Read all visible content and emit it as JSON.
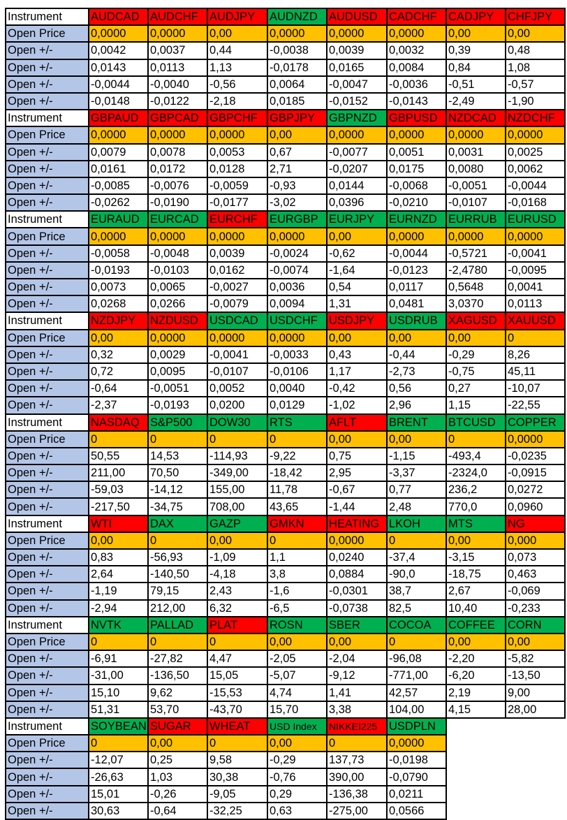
{
  "labels": {
    "instrument": "Instrument",
    "open_price": "Open Price",
    "delta": "Open +/-"
  },
  "colors": {
    "r": "#ff0000",
    "g": "#00b050",
    "open": "#ffc000",
    "label": "#b4c6e7"
  },
  "blocks": [
    {
      "instruments": [
        [
          "AUDCAD",
          "r"
        ],
        [
          "AUDCHF",
          "r"
        ],
        [
          "AUDJPY",
          "r"
        ],
        [
          "AUDNZD",
          "g"
        ],
        [
          "AUDUSD",
          "r"
        ],
        [
          "CADCHF",
          "r"
        ],
        [
          "CADJPY",
          "r"
        ],
        [
          "CHFJPY",
          "r"
        ]
      ],
      "open": [
        "0,0000",
        "0,0000",
        "0,00",
        "0,0000",
        "0,0000",
        "0,0000",
        "0,00",
        "0,00"
      ],
      "rows": [
        [
          "0,0042",
          "0,0037",
          "0,44",
          "-0,0038",
          "0,0039",
          "0,0032",
          "0,39",
          "0,48"
        ],
        [
          "0,0143",
          "0,0113",
          "1,13",
          "-0,0178",
          "0,0165",
          "0,0084",
          "0,84",
          "1,08"
        ],
        [
          "-0,0044",
          "-0,0040",
          "-0,56",
          "0,0064",
          "-0,0047",
          "-0,0036",
          "-0,51",
          "-0,57"
        ],
        [
          "-0,0148",
          "-0,0122",
          "-2,18",
          "0,0185",
          "-0,0152",
          "-0,0143",
          "-2,49",
          "-1,90"
        ]
      ]
    },
    {
      "instruments": [
        [
          "GBPAUD",
          "r"
        ],
        [
          "GBPCAD",
          "r"
        ],
        [
          "GBPCHF",
          "r"
        ],
        [
          "GBPJPY",
          "r"
        ],
        [
          "GBPNZD",
          "g"
        ],
        [
          "GBPUSD",
          "r"
        ],
        [
          "NZDCAD",
          "r"
        ],
        [
          "NZDCHF",
          "r"
        ]
      ],
      "open": [
        "0,0000",
        "0,0000",
        "0,0000",
        "0,00",
        "0,0000",
        "0,0000",
        "0,0000",
        "0,0000"
      ],
      "rows": [
        [
          "0,0079",
          "0,0078",
          "0,0053",
          "0,67",
          "-0,0077",
          "0,0051",
          "0,0031",
          "0,0025"
        ],
        [
          "0,0161",
          "0,0172",
          "0,0128",
          "2,71",
          "-0,0207",
          "0,0175",
          "0,0080",
          "0,0062"
        ],
        [
          "-0,0085",
          "-0,0076",
          "-0,0059",
          "-0,93",
          "0,0144",
          "-0,0068",
          "-0,0051",
          "-0,0044"
        ],
        [
          "-0,0262",
          "-0,0190",
          "-0,0177",
          "-3,02",
          "0,0396",
          "-0,0210",
          "-0,0107",
          "-0,0168"
        ]
      ]
    },
    {
      "instruments": [
        [
          "EURAUD",
          "g"
        ],
        [
          "EURCAD",
          "g"
        ],
        [
          "EURCHF",
          "r"
        ],
        [
          "EURGBP",
          "g"
        ],
        [
          "EURJPY",
          "g"
        ],
        [
          "EURNZD",
          "g"
        ],
        [
          "EURRUB",
          "g"
        ],
        [
          "EURUSD",
          "g"
        ]
      ],
      "open": [
        "0,0000",
        "0,0000",
        "0,0000",
        "0,0000",
        "0,00",
        "0,0000",
        "0,0000",
        "0,0000"
      ],
      "rows": [
        [
          "-0,0058",
          "-0,0048",
          "0,0039",
          "-0,0024",
          "-0,62",
          "-0,0044",
          "-0,5721",
          "-0,0041"
        ],
        [
          "-0,0193",
          "-0,0103",
          "0,0162",
          "-0,0074",
          "-1,64",
          "-0,0123",
          "-2,4780",
          "-0,0095"
        ],
        [
          "0,0073",
          "0,0065",
          "-0,0027",
          "0,0036",
          "0,54",
          "0,0117",
          "0,5648",
          "0,0041"
        ],
        [
          "0,0268",
          "0,0266",
          "-0,0079",
          "0,0094",
          "1,31",
          "0,0481",
          "3,0370",
          "0,0113"
        ]
      ]
    },
    {
      "instruments": [
        [
          "NZDJPY",
          "r"
        ],
        [
          "NZDUSD",
          "r"
        ],
        [
          "USDCAD",
          "g"
        ],
        [
          "USDCHF",
          "g"
        ],
        [
          "USDJPY",
          "r"
        ],
        [
          "USDRUB",
          "g"
        ],
        [
          "XAGUSD",
          "r"
        ],
        [
          "XAUUSD",
          "r"
        ]
      ],
      "open": [
        "0,00",
        "0,0000",
        "0,0000",
        "0,0000",
        "0,00",
        "0,00",
        "0,00",
        "0"
      ],
      "rows": [
        [
          "0,32",
          "0,0029",
          "-0,0041",
          "-0,0033",
          "0,43",
          "-0,44",
          "-0,29",
          "8,26"
        ],
        [
          "0,72",
          "0,0095",
          "-0,0107",
          "-0,0106",
          "1,17",
          "-2,73",
          "-0,75",
          "45,11"
        ],
        [
          "-0,64",
          "-0,0051",
          "0,0052",
          "0,0040",
          "-0,42",
          "0,56",
          "0,27",
          "-10,07"
        ],
        [
          "-2,37",
          "-0,0193",
          "0,0200",
          "0,0129",
          "-1,02",
          "2,96",
          "1,15",
          "-22,55"
        ]
      ]
    },
    {
      "instruments": [
        [
          "NASDAQ",
          "r"
        ],
        [
          "S&P500",
          "g"
        ],
        [
          "DOW30",
          "g"
        ],
        [
          "RTS",
          "g"
        ],
        [
          "AFLT",
          "r"
        ],
        [
          "BRENT",
          "g"
        ],
        [
          "BTCUSD",
          "g"
        ],
        [
          "COPPER",
          "g"
        ]
      ],
      "open": [
        "0",
        "0",
        "0",
        "0",
        "0,00",
        "0,00",
        "0",
        "0,0000"
      ],
      "rows": [
        [
          "50,55",
          "14,53",
          "-114,93",
          "-9,22",
          "0,75",
          "-1,15",
          "-493,4",
          "-0,0235"
        ],
        [
          "211,00",
          "70,50",
          "-349,00",
          "-18,42",
          "2,95",
          "-3,37",
          "-2324,0",
          "-0,0915"
        ],
        [
          "-59,03",
          "-14,12",
          "155,00",
          "11,78",
          "-0,67",
          "0,77",
          "236,2",
          "0,0272"
        ],
        [
          "-217,50",
          "-34,75",
          "708,00",
          "43,65",
          "-1,44",
          "2,48",
          "770,0",
          "0,0960"
        ]
      ]
    },
    {
      "instruments": [
        [
          "WTI",
          "r"
        ],
        [
          "DAX",
          "g"
        ],
        [
          "GAZP",
          "g"
        ],
        [
          "GMKN",
          "r"
        ],
        [
          "HEATING",
          "r"
        ],
        [
          "LKOH",
          "g"
        ],
        [
          "MTS",
          "g"
        ],
        [
          "NG",
          "r"
        ]
      ],
      "open": [
        "0,00",
        "0",
        "0,00",
        "0",
        "0,0000",
        "0",
        "0,00",
        "0,000"
      ],
      "rows": [
        [
          "0,83",
          "-56,93",
          "-1,09",
          "1,1",
          "0,0240",
          "-37,4",
          "-3,15",
          "0,073"
        ],
        [
          "2,64",
          "-140,50",
          "-4,18",
          "3,8",
          "0,0884",
          "-90,0",
          "-18,75",
          "0,463"
        ],
        [
          "-1,19",
          "79,15",
          "2,43",
          "-1,6",
          "-0,0301",
          "38,7",
          "2,67",
          "-0,069"
        ],
        [
          "-2,94",
          "212,00",
          "6,32",
          "-6,5",
          "-0,0738",
          "82,5",
          "10,40",
          "-0,233"
        ]
      ]
    },
    {
      "instruments": [
        [
          "NVTK",
          "g"
        ],
        [
          "PALLAD",
          "g"
        ],
        [
          "PLAT",
          "r"
        ],
        [
          "ROSN",
          "g"
        ],
        [
          "SBER",
          "g"
        ],
        [
          "COCOA",
          "g"
        ],
        [
          "COFFEE",
          "g"
        ],
        [
          "CORN",
          "g"
        ]
      ],
      "open": [
        "0",
        "0",
        "0",
        "0,00",
        "0,00",
        "0",
        "0,00",
        "0,00"
      ],
      "rows": [
        [
          "-6,91",
          "-27,82",
          "4,47",
          "-2,05",
          "-2,04",
          "-96,08",
          "-2,20",
          "-5,82"
        ],
        [
          "-31,00",
          "-136,50",
          "15,05",
          "-5,07",
          "-9,12",
          "-771,00",
          "-6,20",
          "-13,50"
        ],
        [
          "15,10",
          "9,62",
          "-15,53",
          "4,74",
          "1,41",
          "42,57",
          "2,19",
          "9,00"
        ],
        [
          "51,31",
          "53,70",
          "-43,70",
          "15,70",
          "3,38",
          "104,00",
          "4,15",
          "28,00"
        ]
      ]
    },
    {
      "instruments": [
        [
          "SOYBEAN",
          "g"
        ],
        [
          "SUGAR",
          "r"
        ],
        [
          "WHEAT",
          "r"
        ],
        [
          "USD Index",
          "g"
        ],
        [
          "NIKKEI225",
          "r"
        ],
        [
          "USDPLN",
          "g"
        ]
      ],
      "open": [
        "0",
        "0,00",
        "0",
        "0,00",
        "0",
        "0,0000"
      ],
      "rows": [
        [
          "-12,07",
          "0,25",
          "9,58",
          "-0,29",
          "137,73",
          "-0,0198"
        ],
        [
          "-26,63",
          "1,03",
          "30,38",
          "-0,76",
          "390,00",
          "-0,0790"
        ],
        [
          "15,01",
          "-0,26",
          "-9,05",
          "0,29",
          "-136,38",
          "0,0211"
        ],
        [
          "30,63",
          "-0,64",
          "-32,25",
          "0,63",
          "-275,00",
          "0,0566"
        ]
      ]
    }
  ]
}
